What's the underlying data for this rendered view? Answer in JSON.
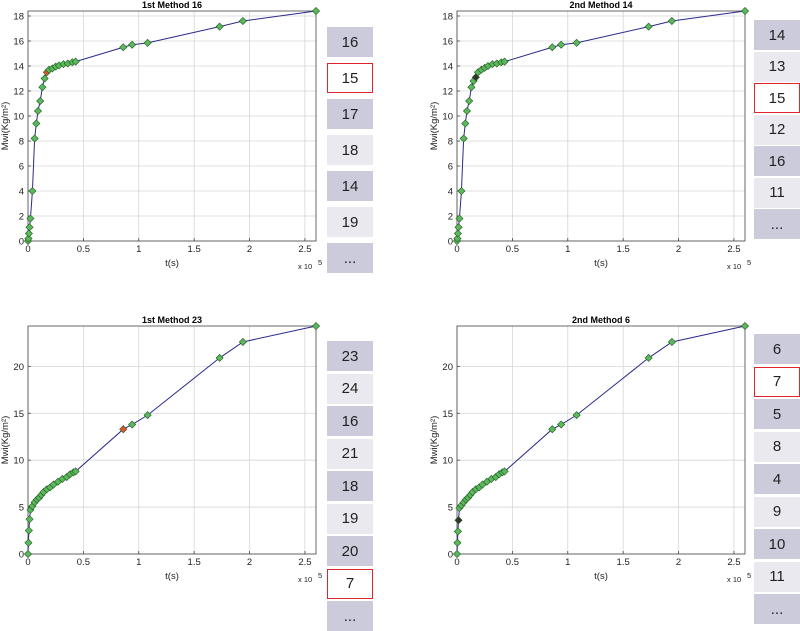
{
  "colors": {
    "line": "#2a2a8c",
    "marker": "#5cb85c",
    "marker_highlight": "#e0552b",
    "marker_dark": "#333333",
    "selection_border": "#e0242c",
    "cell_dark": "#cbcbdc",
    "cell_light": "#e9e9ef"
  },
  "chart_data": [
    {
      "type": "line",
      "title": "1st Method    16",
      "xlabel": "t(s)",
      "ylabel": "Mwi(Kg/m²)",
      "x_multiplier": "x 10",
      "x_multiplier_exp": "5",
      "xlim": [
        0,
        2.6
      ],
      "ylim": [
        0,
        18.4
      ],
      "xticks": [
        0,
        0.5,
        1,
        1.5,
        2,
        2.5
      ],
      "yticks": [
        0,
        2,
        4,
        6,
        8,
        10,
        12,
        14,
        16,
        18
      ],
      "grid": true,
      "x": [
        0.0,
        0.004,
        0.008,
        0.014,
        0.022,
        0.04,
        0.06,
        0.075,
        0.09,
        0.11,
        0.13,
        0.15,
        0.17,
        0.19,
        0.22,
        0.25,
        0.28,
        0.32,
        0.36,
        0.4,
        0.43,
        0.86,
        0.94,
        1.08,
        1.73,
        1.94,
        2.6
      ],
      "y": [
        0.0,
        0.2,
        0.6,
        1.1,
        1.8,
        4.0,
        8.2,
        9.4,
        10.4,
        11.2,
        12.3,
        13.0,
        13.5,
        13.7,
        13.8,
        13.95,
        14.05,
        14.15,
        14.2,
        14.3,
        14.35,
        15.5,
        15.7,
        15.85,
        17.15,
        17.6,
        18.4
      ],
      "highlight_index": 12,
      "highlight_style": "orange",
      "list": [
        {
          "label": "16",
          "style": "dark"
        },
        {
          "label": "15",
          "style": "selected"
        },
        {
          "label": "17",
          "style": "dark"
        },
        {
          "label": "18",
          "style": "light"
        },
        {
          "label": "14",
          "style": "dark"
        },
        {
          "label": "19",
          "style": "light"
        },
        {
          "label": "...",
          "style": "dark"
        }
      ]
    },
    {
      "type": "line",
      "title": "2nd Method    14",
      "xlabel": "t(s)",
      "ylabel": "Mwi(Kg/m²)",
      "x_multiplier": "x 10",
      "x_multiplier_exp": "5",
      "xlim": [
        0,
        2.6
      ],
      "ylim": [
        0,
        18.4
      ],
      "xticks": [
        0,
        0.5,
        1,
        1.5,
        2,
        2.5
      ],
      "yticks": [
        0,
        2,
        4,
        6,
        8,
        10,
        12,
        14,
        16,
        18
      ],
      "grid": true,
      "x": [
        0.0,
        0.004,
        0.008,
        0.014,
        0.022,
        0.04,
        0.06,
        0.075,
        0.09,
        0.11,
        0.13,
        0.15,
        0.17,
        0.19,
        0.22,
        0.25,
        0.28,
        0.32,
        0.36,
        0.4,
        0.43,
        0.86,
        0.94,
        1.08,
        1.73,
        1.94,
        2.6
      ],
      "y": [
        0.0,
        0.2,
        0.6,
        1.1,
        1.8,
        4.0,
        8.2,
        9.4,
        10.4,
        11.2,
        12.3,
        12.8,
        13.1,
        13.5,
        13.7,
        13.85,
        14.0,
        14.15,
        14.2,
        14.3,
        14.35,
        15.5,
        15.7,
        15.85,
        17.15,
        17.6,
        18.4
      ],
      "highlight_index": 12,
      "highlight_style": "dark",
      "list": [
        {
          "label": "14",
          "style": "dark"
        },
        {
          "label": "13",
          "style": "light"
        },
        {
          "label": "15",
          "style": "selected"
        },
        {
          "label": "12",
          "style": "light"
        },
        {
          "label": "16",
          "style": "dark"
        },
        {
          "label": "11",
          "style": "light"
        },
        {
          "label": "...",
          "style": "dark"
        }
      ]
    },
    {
      "type": "line",
      "title": "1st Method    23",
      "xlabel": "t(s)",
      "ylabel": "Mwi(Kg/m²)",
      "x_multiplier": "x 10",
      "x_multiplier_exp": "5",
      "xlim": [
        0,
        2.6
      ],
      "ylim": [
        0,
        24.3
      ],
      "xticks": [
        0,
        0.5,
        1,
        1.5,
        2,
        2.5
      ],
      "yticks": [
        0,
        5,
        10,
        15,
        20
      ],
      "grid": true,
      "x": [
        0.0,
        0.004,
        0.008,
        0.014,
        0.022,
        0.04,
        0.06,
        0.08,
        0.1,
        0.12,
        0.14,
        0.17,
        0.2,
        0.23,
        0.27,
        0.31,
        0.35,
        0.38,
        0.41,
        0.43,
        0.86,
        0.94,
        1.08,
        1.73,
        1.94,
        2.6
      ],
      "y": [
        0.0,
        1.2,
        2.5,
        3.7,
        4.7,
        5.1,
        5.5,
        5.8,
        6.0,
        6.3,
        6.6,
        6.9,
        7.1,
        7.4,
        7.7,
        8.0,
        8.2,
        8.5,
        8.7,
        8.8,
        13.3,
        13.8,
        14.8,
        20.9,
        22.6,
        24.3
      ],
      "highlight_index": 20,
      "highlight_style": "orange",
      "list": [
        {
          "label": "23",
          "style": "dark"
        },
        {
          "label": "24",
          "style": "light"
        },
        {
          "label": "16",
          "style": "dark"
        },
        {
          "label": "21",
          "style": "light"
        },
        {
          "label": "18",
          "style": "dark"
        },
        {
          "label": "19",
          "style": "light"
        },
        {
          "label": "20",
          "style": "dark"
        },
        {
          "label": "7",
          "style": "selected"
        },
        {
          "label": "...",
          "style": "dark"
        }
      ]
    },
    {
      "type": "line",
      "title": "2nd Method    6",
      "xlabel": "t(s)",
      "ylabel": "Mwi(Kg/m²)",
      "x_multiplier": "x 10",
      "x_multiplier_exp": "5",
      "xlim": [
        0,
        2.6
      ],
      "ylim": [
        0,
        24.3
      ],
      "xticks": [
        0,
        0.5,
        1,
        1.5,
        2,
        2.5
      ],
      "yticks": [
        0,
        5,
        10,
        15,
        20
      ],
      "grid": true,
      "x": [
        0.0,
        0.004,
        0.008,
        0.014,
        0.022,
        0.04,
        0.06,
        0.08,
        0.1,
        0.12,
        0.14,
        0.17,
        0.2,
        0.23,
        0.27,
        0.31,
        0.35,
        0.38,
        0.41,
        0.43,
        0.86,
        0.94,
        1.08,
        1.73,
        1.94,
        2.6
      ],
      "y": [
        0.0,
        1.2,
        2.4,
        3.6,
        4.9,
        5.2,
        5.5,
        5.8,
        6.0,
        6.3,
        6.6,
        6.9,
        7.1,
        7.4,
        7.7,
        8.0,
        8.2,
        8.5,
        8.7,
        8.8,
        13.3,
        13.8,
        14.8,
        20.9,
        22.6,
        24.3
      ],
      "highlight_index": 3,
      "highlight_style": "dark",
      "list": [
        {
          "label": "6",
          "style": "dark"
        },
        {
          "label": "7",
          "style": "selected"
        },
        {
          "label": "5",
          "style": "dark"
        },
        {
          "label": "8",
          "style": "light"
        },
        {
          "label": "4",
          "style": "dark"
        },
        {
          "label": "9",
          "style": "light"
        },
        {
          "label": "10",
          "style": "dark"
        },
        {
          "label": "11",
          "style": "light"
        },
        {
          "label": "...",
          "style": "dark"
        }
      ]
    }
  ]
}
